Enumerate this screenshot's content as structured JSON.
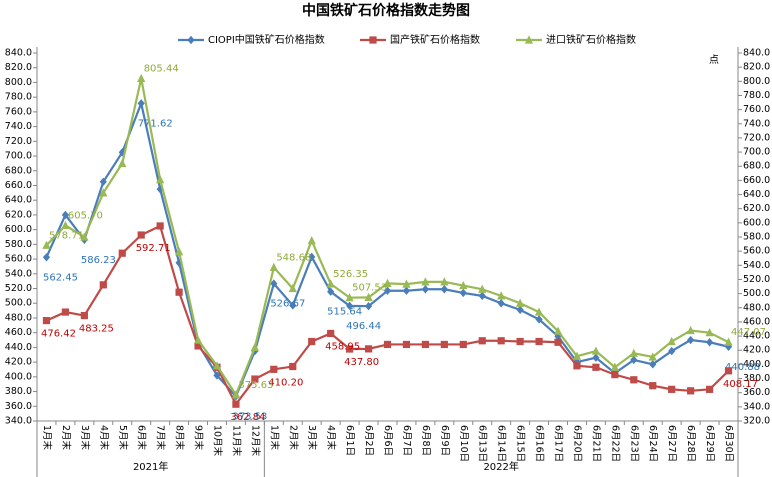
{
  "chart_data": {
    "type": "line",
    "title": "中国铁矿石价格指数走势图",
    "y2_label": "点",
    "categories": [
      "1月末",
      "2月末",
      "3月末",
      "4月末",
      "5月末",
      "6月末",
      "7月末",
      "8月末",
      "9月末",
      "10月末",
      "11月末",
      "12月末",
      "1月末",
      "2月末",
      "3月末",
      "4月末",
      "6月1日",
      "6月2日",
      "6月6日",
      "6月7日",
      "6月8日",
      "6月9日",
      "6月10日",
      "6月13日",
      "6月14日",
      "6月15日",
      "6月16日",
      "6月17日",
      "6月20日",
      "6月21日",
      "6月22日",
      "6月23日",
      "6月24日",
      "6月27日",
      "6月28日",
      "6月29日",
      "6月30日"
    ],
    "category_groups": [
      {
        "label": "2021年",
        "size": 12
      },
      {
        "label": "2022年",
        "size": 25
      }
    ],
    "ylim": [
      340,
      840
    ],
    "yticks": [
      {
        "value": 340,
        "label": "340.0"
      },
      {
        "value": 360,
        "label": "360.0"
      },
      {
        "value": 380,
        "label": "380.0"
      },
      {
        "value": 400,
        "label": "400.0"
      },
      {
        "value": 420,
        "label": "420.0"
      },
      {
        "value": 440,
        "label": "440.0"
      },
      {
        "value": 460,
        "label": "460.0"
      },
      {
        "value": 480,
        "label": "480.0"
      },
      {
        "value": 500,
        "label": "500.0"
      },
      {
        "value": 520,
        "label": "520.0"
      },
      {
        "value": 540,
        "label": "540.0"
      },
      {
        "value": 560,
        "label": "560.0"
      },
      {
        "value": 580,
        "label": "580.0"
      },
      {
        "value": 600,
        "label": "600.0"
      },
      {
        "value": 620,
        "label": "620.0"
      },
      {
        "value": 640,
        "label": "640.0"
      },
      {
        "value": 660,
        "label": "660.0"
      },
      {
        "value": 680,
        "label": "680.0"
      },
      {
        "value": 700,
        "label": "700.0"
      },
      {
        "value": 720,
        "label": "720.0"
      },
      {
        "value": 740,
        "label": "740.0"
      },
      {
        "value": 760,
        "label": "760.0"
      },
      {
        "value": 780,
        "label": "780.0"
      },
      {
        "value": 800,
        "label": "800.0"
      },
      {
        "value": 820,
        "label": "820.0"
      },
      {
        "value": 840,
        "label": "840.0"
      }
    ],
    "y2lim": [
      320,
      840
    ],
    "y2ticks": [
      {
        "value": 320,
        "label": "320.0"
      },
      {
        "value": 340,
        "label": "340.0"
      },
      {
        "value": 360,
        "label": "360.0"
      },
      {
        "value": 380,
        "label": "380.0"
      },
      {
        "value": 400,
        "label": "400.0"
      },
      {
        "value": 420,
        "label": "420.0"
      },
      {
        "value": 440,
        "label": "440.0"
      },
      {
        "value": 460,
        "label": "460.0"
      },
      {
        "value": 480,
        "label": "480.0"
      },
      {
        "value": 500,
        "label": "500.0"
      },
      {
        "value": 520,
        "label": "520.0"
      },
      {
        "value": 540,
        "label": "540.0"
      },
      {
        "value": 560,
        "label": "560.0"
      },
      {
        "value": 580,
        "label": "580.0"
      },
      {
        "value": 600,
        "label": "600.0"
      },
      {
        "value": 620,
        "label": "620.0"
      },
      {
        "value": 640,
        "label": "640.0"
      },
      {
        "value": 660,
        "label": "660.0"
      },
      {
        "value": 680,
        "label": "680.0"
      },
      {
        "value": 700,
        "label": "700.0"
      },
      {
        "value": 720,
        "label": "720.0"
      },
      {
        "value": 740,
        "label": "740.0"
      },
      {
        "value": 760,
        "label": "760.0"
      },
      {
        "value": 780,
        "label": "780.0"
      },
      {
        "value": 800,
        "label": "800.0"
      },
      {
        "value": 820,
        "label": "820.0"
      },
      {
        "value": 840,
        "label": "840.0"
      }
    ],
    "series": [
      {
        "name": "CIOPI中国铁矿石价格指数",
        "color": "#4a7ebb",
        "label_color": "#2e75b6",
        "marker": "diamond",
        "values": [
          562.45,
          620,
          586.23,
          665,
          705,
          771.62,
          655,
          555,
          445,
          402,
          373.53,
          435,
          526.67,
          497,
          563,
          515.64,
          496.44,
          496,
          517,
          517,
          519,
          519,
          514,
          510,
          500,
          491,
          478,
          455,
          420,
          426,
          405,
          423,
          417,
          435,
          450,
          447,
          440.88
        ],
        "value_labels": [
          "562.45",
          null,
          "586.23",
          null,
          null,
          "771.62",
          null,
          null,
          null,
          null,
          "373.53",
          null,
          "526.67",
          null,
          null,
          "515.64",
          "496.44",
          null,
          null,
          null,
          null,
          null,
          null,
          null,
          null,
          null,
          null,
          null,
          null,
          null,
          null,
          null,
          null,
          null,
          null,
          null,
          "440.88"
        ]
      },
      {
        "name": "国产铁矿石价格指数",
        "color": "#be4b48",
        "label_color": "#c00000",
        "marker": "square",
        "values": [
          476.42,
          488,
          483.25,
          525,
          568,
          592.71,
          605,
          515,
          442,
          413,
          362.84,
          397,
          410.2,
          414,
          448,
          458.95,
          437.8,
          438,
          444,
          444,
          444,
          444,
          444,
          449,
          449,
          448,
          448,
          447,
          415,
          413,
          403,
          396,
          388,
          383,
          381,
          383,
          408.17
        ],
        "value_labels": [
          "476.42",
          null,
          "483.25",
          null,
          null,
          "592.71",
          null,
          null,
          null,
          null,
          "362.84",
          null,
          "410.20",
          null,
          null,
          "458.95",
          "437.80",
          null,
          null,
          null,
          null,
          null,
          null,
          null,
          null,
          null,
          null,
          null,
          null,
          null,
          null,
          null,
          null,
          null,
          null,
          null,
          "408.17"
        ]
      },
      {
        "name": "进口铁矿石价格指数",
        "color": "#98b954",
        "label_color": "#8faa3c",
        "marker": "triangle",
        "values": [
          578.71,
          605.7,
          590,
          650,
          690,
          805.44,
          668,
          570,
          450,
          415,
          375.63,
          440,
          548.68,
          520,
          585,
          526.35,
          507.53,
          508,
          527,
          526,
          529,
          529,
          524,
          519,
          510,
          500,
          488,
          462,
          428,
          435,
          413,
          432,
          427,
          448,
          463,
          460,
          447.07
        ],
        "value_labels": [
          "578.71",
          "605.70",
          null,
          null,
          null,
          "805.44",
          null,
          null,
          null,
          null,
          "375.63",
          null,
          "548.68",
          null,
          null,
          "526.35",
          "507.53",
          null,
          null,
          null,
          null,
          null,
          null,
          null,
          null,
          null,
          null,
          null,
          null,
          null,
          null,
          null,
          null,
          null,
          null,
          null,
          "447.07"
        ]
      }
    ]
  }
}
